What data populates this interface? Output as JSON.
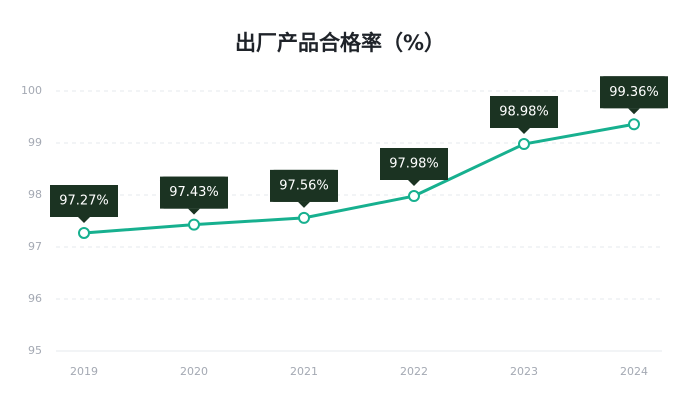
{
  "chart_data": {
    "type": "line",
    "title": "出厂产品合格率（%）",
    "categories": [
      "2019",
      "2020",
      "2021",
      "2022",
      "2023",
      "2024"
    ],
    "series": [
      {
        "color": "#17b08f",
        "values": [
          97.27,
          97.43,
          97.56,
          97.98,
          98.98,
          99.36
        ],
        "value_labels": [
          "97.27%",
          "97.43%",
          "97.56%",
          "97.98%",
          "98.98%",
          "99.36%"
        ]
      }
    ],
    "ylim": [
      95,
      100
    ],
    "yticks": [
      95,
      96,
      97,
      98,
      99,
      100
    ],
    "grid": true
  }
}
